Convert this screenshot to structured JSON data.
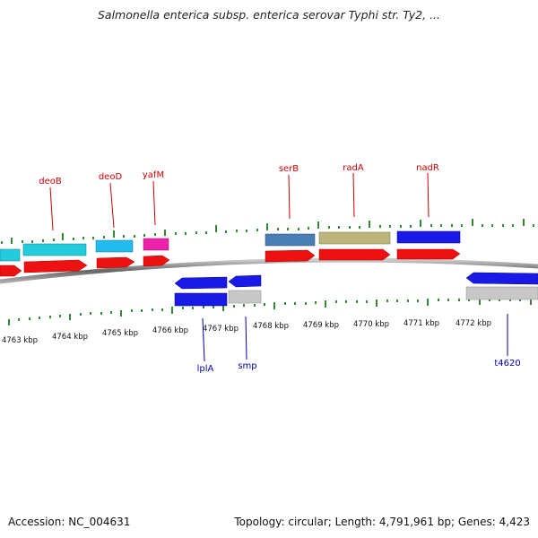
{
  "title": "Salmonella enterica subsp. enterica serovar Typhi str. Ty2, ...",
  "footer": {
    "accession": "Accession: NC_004631",
    "summary": "Topology: circular; Length: 4,791,961 bp; Genes: 4,423"
  },
  "colors": {
    "forward_label": "#cc0000",
    "reverse_label": "#0000aa",
    "tick": "#338833",
    "backbone": "#777777"
  },
  "ruler": {
    "unit": "kbp",
    "labels": [
      "4763 kbp",
      "4764 kbp",
      "4765 kbp",
      "4766 kbp",
      "4767 kbp",
      "4768 kbp",
      "4769 kbp",
      "4770 kbp",
      "4771 kbp",
      "4772 kbp"
    ]
  },
  "genes": {
    "forward": [
      {
        "name": "",
        "color": "#22ccdd",
        "strand": "+"
      },
      {
        "name": "deoB",
        "color": "#22ccdd",
        "strand": "+"
      },
      {
        "name": "deoD",
        "color": "#22bbee",
        "strand": "+"
      },
      {
        "name": "yafM",
        "color": "#ee22aa",
        "strand": "+"
      },
      {
        "name": "serB",
        "color": "#4a7fb5",
        "strand": "+"
      },
      {
        "name": "radA",
        "color": "#bbb57a",
        "strand": "+"
      },
      {
        "name": "nadR",
        "color": "#1a1ae6",
        "strand": "+"
      }
    ],
    "reverse": [
      {
        "name": "lplA",
        "color": "#1a1ae6",
        "strand": "-"
      },
      {
        "name": "smp",
        "color": "#c8c8c8",
        "strand": "-"
      },
      {
        "name": "t4620",
        "color": "#1a1ae6",
        "strand": "-"
      }
    ]
  }
}
